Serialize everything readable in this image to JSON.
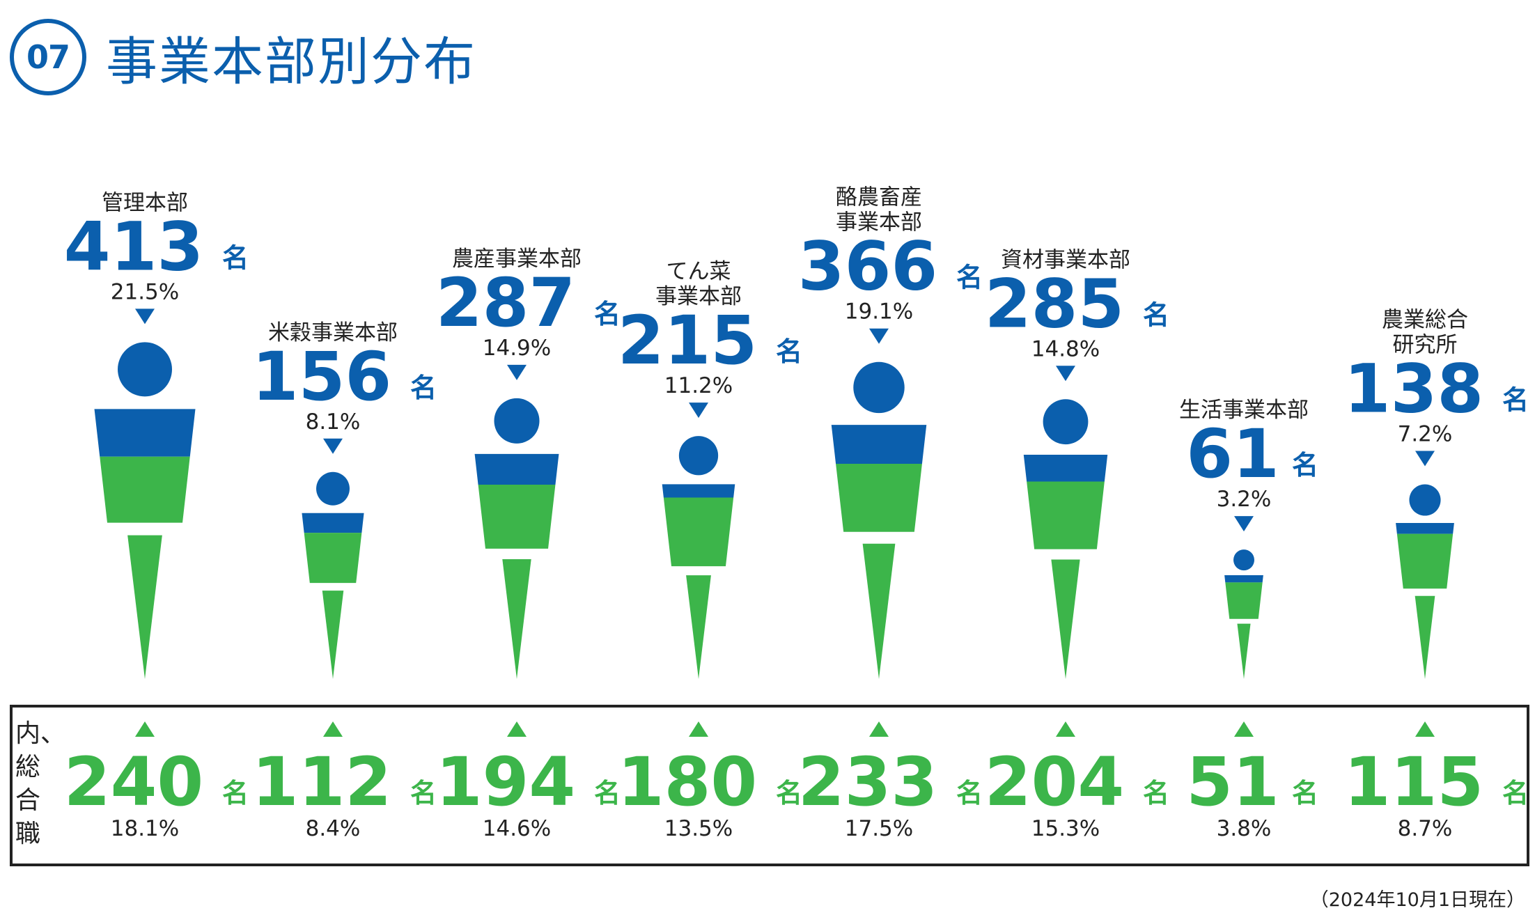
{
  "header": {
    "number": "07",
    "title": "事業本部別分布"
  },
  "summary_label": "内、総合職",
  "note": "（2024年10月1日現在）",
  "colors": {
    "blue": "#0b5fad",
    "green": "#3cb54a",
    "text": "#222222",
    "border": "#222222"
  },
  "chart_data": {
    "type": "bar",
    "unit": "名",
    "categories": [
      "管理本部",
      "米穀事業本部",
      "農産事業本部",
      "てん菜事業本部",
      "酪農畜産事業本部",
      "資材事業本部",
      "生活事業本部",
      "農業総合研究所"
    ],
    "series": [
      {
        "name": "",
        "values": [
          413,
          156,
          287,
          215,
          366,
          285,
          61,
          138
        ],
        "percent": [
          "21.5%",
          "8.1%",
          "14.9%",
          "11.2%",
          "19.1%",
          "14.8%",
          "3.2%",
          "7.2%"
        ]
      },
      {
        "name": "内、総合職",
        "values": [
          240,
          112,
          194,
          180,
          233,
          204,
          51,
          115
        ],
        "percent": [
          "18.1%",
          "8.4%",
          "14.6%",
          "13.5%",
          "17.5%",
          "15.3%",
          "3.8%",
          "8.7%"
        ]
      }
    ]
  },
  "divisions": [
    {
      "label_lines": [
        "管理本部"
      ],
      "total": "413",
      "total_pct": "21.5%",
      "sogo": "240",
      "sogo_pct": "18.1%"
    },
    {
      "label_lines": [
        "米穀事業本部"
      ],
      "total": "156",
      "total_pct": "8.1%",
      "sogo": "112",
      "sogo_pct": "8.4%"
    },
    {
      "label_lines": [
        "農産事業本部"
      ],
      "total": "287",
      "total_pct": "14.9%",
      "sogo": "194",
      "sogo_pct": "14.6%"
    },
    {
      "label_lines": [
        "てん菜",
        "事業本部"
      ],
      "total": "215",
      "total_pct": "11.2%",
      "sogo": "180",
      "sogo_pct": "13.5%"
    },
    {
      "label_lines": [
        "酪農畜産",
        "事業本部"
      ],
      "total": "366",
      "total_pct": "19.1%",
      "sogo": "233",
      "sogo_pct": "17.5%"
    },
    {
      "label_lines": [
        "資材事業本部"
      ],
      "total": "285",
      "total_pct": "14.8%",
      "sogo": "204",
      "sogo_pct": "15.3%"
    },
    {
      "label_lines": [
        "生活事業本部"
      ],
      "total": "61",
      "total_pct": "3.2%",
      "sogo": "51",
      "sogo_pct": "3.8%"
    },
    {
      "label_lines": [
        "農業総合",
        "研究所"
      ],
      "total": "138",
      "total_pct": "7.2%",
      "sogo": "115",
      "sogo_pct": "8.7%"
    }
  ]
}
